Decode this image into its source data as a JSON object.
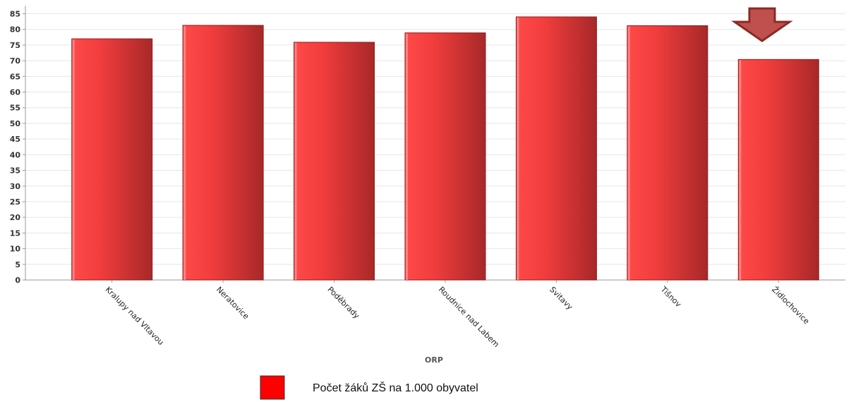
{
  "chart_data": {
    "type": "bar",
    "categories": [
      "Kralupy nad Vltavou",
      "Neratovice",
      "Poděbrady",
      "Roudnice nad Labem",
      "Svitavy",
      "Tišnov",
      "Židlochovice"
    ],
    "series": [
      {
        "name": "Počet žáků ZŠ na 1.000 obyvatel",
        "values": [
          77,
          81.3,
          75.9,
          78.9,
          84,
          81.2,
          70.4
        ]
      }
    ],
    "xlabel": "ORP",
    "ylabel": "",
    "ylim": [
      0,
      85
    ],
    "yticks": [
      0,
      5,
      10,
      15,
      20,
      25,
      30,
      35,
      40,
      45,
      50,
      55,
      60,
      65,
      70,
      75,
      80,
      85
    ],
    "grid": true,
    "legend": "bottom",
    "highlight_category": "Židlochovice",
    "colors": {
      "bar_light": "#ff4a4a",
      "bar_dark": "#a82828",
      "legend_swatch": "#ff0000",
      "arrow_fill": "#c0504d",
      "arrow_stroke": "#8b2a26",
      "grid": "#e6e6e6",
      "axis": "#999999"
    }
  }
}
